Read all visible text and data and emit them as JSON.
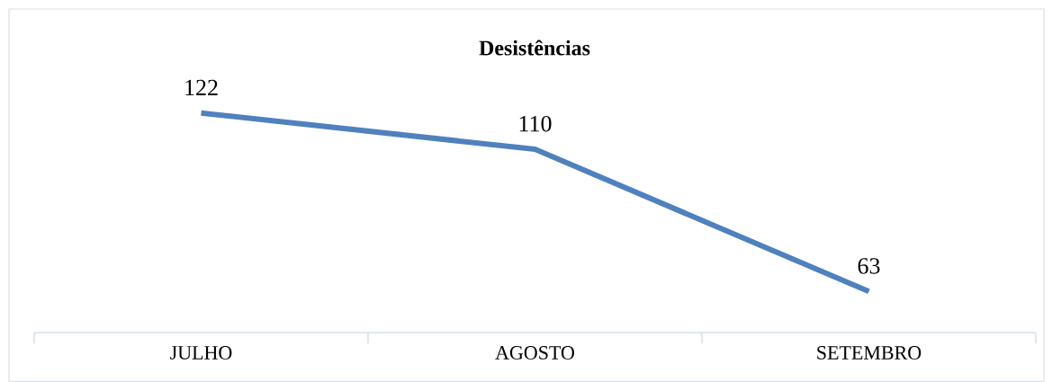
{
  "chart_data": {
    "type": "line",
    "title": "Desistências",
    "categories": [
      "JULHO",
      "AGOSTO",
      "SETEMBRO"
    ],
    "values": [
      122,
      110,
      63
    ],
    "color": "#4f81bd",
    "data_labels": true,
    "marker": "none"
  }
}
